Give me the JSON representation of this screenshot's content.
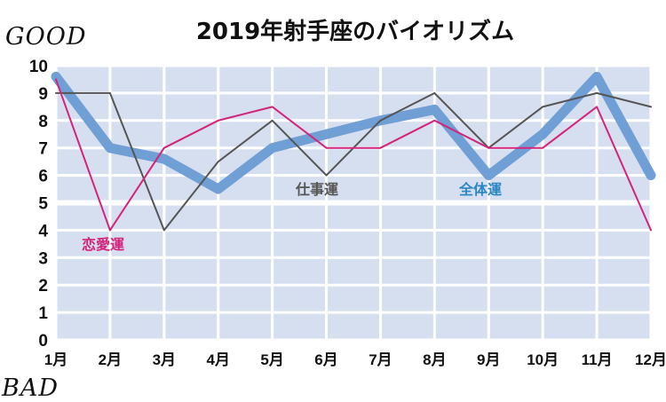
{
  "chart_data": {
    "type": "line",
    "title": "2019年射手座のバイオリズム",
    "top_label": "GOOD",
    "bottom_label": "BAD",
    "categories": [
      "1月",
      "2月",
      "3月",
      "4月",
      "5月",
      "6月",
      "7月",
      "8月",
      "9月",
      "10月",
      "11月",
      "12月"
    ],
    "ylim": [
      0,
      10
    ],
    "yticks": [
      "0",
      "1",
      "2",
      "3",
      "4",
      "5",
      "6",
      "7",
      "8",
      "9",
      "10"
    ],
    "grid": true,
    "series": [
      {
        "key": "overall",
        "name": "全体運",
        "color": "#6f9fd4",
        "label_color": "#2b86c4",
        "values": [
          9.6,
          7.0,
          6.6,
          5.5,
          7.0,
          7.5,
          8.0,
          8.4,
          6.0,
          7.5,
          9.6,
          6.0
        ]
      },
      {
        "key": "work",
        "name": "仕事運",
        "color": "#555555",
        "label_color": "#555555",
        "values": [
          9.0,
          9.0,
          4.0,
          6.5,
          8.0,
          6.0,
          8.0,
          9.0,
          7.0,
          8.5,
          9.0,
          8.5
        ]
      },
      {
        "key": "love",
        "name": "恋愛運",
        "color": "#d4237a",
        "label_color": "#d4237a",
        "values": [
          9.5,
          4.0,
          7.0,
          8.0,
          8.5,
          7.0,
          7.0,
          8.0,
          7.0,
          7.0,
          8.5,
          4.0
        ]
      }
    ]
  }
}
